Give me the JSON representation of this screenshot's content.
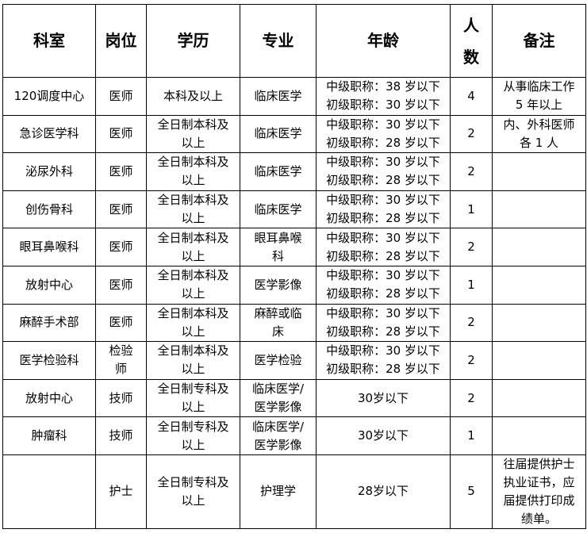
{
  "headers": [
    "科室",
    "岗位",
    "学历",
    "专业",
    "年龄",
    "人\n数",
    "备注"
  ],
  "rows": [
    {
      "dept": "120调度中心",
      "post": "医师",
      "edu": "本科及以上",
      "major": "临床医学",
      "age": "中级职称：38 岁以下\n初级职称：30 岁以下",
      "count": "4",
      "note": "从事临床工作\n5 年以上"
    },
    {
      "dept": "急诊医学科",
      "post": "医师",
      "edu": "全日制本科及\n以上",
      "major": "临床医学",
      "age": "中级职称：30 岁以下\n初级职称：28 岁以下",
      "count": "2",
      "note": "内、外科医师\n各 1 人"
    },
    {
      "dept": "泌尿外科",
      "post": "医师",
      "edu": "全日制本科及\n以上",
      "major": "临床医学",
      "age": "中级职称：30 岁以下\n初级职称：28 岁以下",
      "count": "2",
      "note": ""
    },
    {
      "dept": "创伤骨科",
      "post": "医师",
      "edu": "全日制本科及\n以上",
      "major": "临床医学",
      "age": "中级职称：30 岁以下\n初级职称：28 岁以下",
      "count": "1",
      "note": ""
    },
    {
      "dept": "眼耳鼻喉科",
      "post": "医师",
      "edu": "全日制本科及\n以上",
      "major": "眼耳鼻喉\n科",
      "age": "中级职称：30 岁以下\n初级职称：28 岁以下",
      "count": "2",
      "note": ""
    },
    {
      "dept": "放射中心",
      "post": "医师",
      "edu": "全日制本科及\n以上",
      "major": "医学影像",
      "age": "中级职称：30 岁以下\n初级职称：28 岁以下",
      "count": "1",
      "note": ""
    },
    {
      "dept": "麻醉手术部",
      "post": "医师",
      "edu": "全日制本科及\n以上",
      "major": "麻醉或临\n床",
      "age": "中级职称：30 岁以下\n初级职称：28 岁以下",
      "count": "2",
      "note": ""
    },
    {
      "dept": "医学检验科",
      "post": "检验\n师",
      "edu": "全日制本科及\n以上",
      "major": "医学检验",
      "age": "中级职称：30 岁以下\n初级职称：28 岁以下",
      "count": "2",
      "note": ""
    },
    {
      "dept": "放射中心",
      "post": "技师",
      "edu": "全日制专科及\n以上",
      "major": "临床医学/\n医学影像",
      "age": "30岁以下",
      "count": "2",
      "note": ""
    },
    {
      "dept": "肿瘤科",
      "post": "技师",
      "edu": "全日制专科及\n以上",
      "major": "临床医学/\n医学影像",
      "age": "30岁以下",
      "count": "1",
      "note": ""
    },
    {
      "dept": "",
      "post": "护士",
      "edu": "全日制专科及\n以上",
      "major": "护理学",
      "age": "28岁以下",
      "count": "5",
      "note": "往届提供护士\n执业证书，应\n届提供打印成\n绩单。"
    }
  ]
}
